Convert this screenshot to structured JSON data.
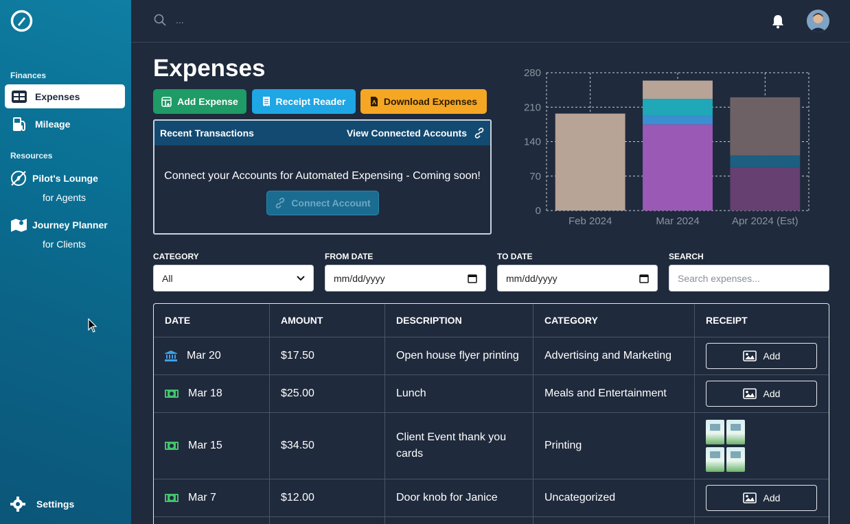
{
  "sidebar": {
    "finances_label": "Finances",
    "items": [
      {
        "label": "Expenses",
        "icon": "table-icon",
        "active": true
      },
      {
        "label": "Mileage",
        "icon": "gas-pump-icon",
        "active": false
      }
    ],
    "resources_label": "Resources",
    "resources": [
      {
        "title": "Pilot's Lounge",
        "subtitle": "for Agents",
        "icon": "compass-icon"
      },
      {
        "title": "Journey Planner",
        "subtitle": "for Clients",
        "icon": "map-icon"
      }
    ],
    "settings_label": "Settings"
  },
  "topbar": {
    "search_placeholder": "..."
  },
  "page": {
    "title": "Expenses",
    "buttons": {
      "add": "Add Expense",
      "receipt": "Receipt Reader",
      "download": "Download Expenses"
    }
  },
  "recent": {
    "title": "Recent Transactions",
    "link": "View Connected Accounts",
    "message": "Connect your Accounts for Automated Expensing - Coming soon!",
    "button": "Connect Account"
  },
  "chart_data": {
    "type": "bar",
    "stacked": true,
    "categories": [
      "Feb 2024",
      "Mar 2024",
      "Apr 2024 (Est)"
    ],
    "ylim": [
      0,
      280
    ],
    "yticks": [
      0,
      70,
      140,
      210,
      280
    ],
    "grid": true,
    "series": [
      {
        "color": "#9b59b6",
        "values": [
          0,
          175,
          0
        ]
      },
      {
        "color": "#3a8fd0",
        "values": [
          0,
          18,
          0
        ]
      },
      {
        "color": "#20a8b8",
        "values": [
          0,
          34,
          0
        ]
      },
      {
        "color": "#b8a397",
        "values": [
          197,
          37,
          0
        ]
      },
      {
        "color": "#654070",
        "values": [
          0,
          0,
          88
        ]
      },
      {
        "color": "#1c5f80",
        "values": [
          0,
          0,
          24
        ]
      },
      {
        "color": "#6e6166",
        "values": [
          0,
          0,
          118
        ]
      }
    ]
  },
  "filters": {
    "category_label": "CATEGORY",
    "category_value": "All",
    "from_label": "FROM DATE",
    "from_placeholder": "mm/dd/yyyy",
    "to_label": "TO DATE",
    "to_placeholder": "mm/dd/yyyy",
    "search_label": "SEARCH",
    "search_placeholder": "Search expenses..."
  },
  "table": {
    "headers": [
      "DATE",
      "AMOUNT",
      "DESCRIPTION",
      "CATEGORY",
      "RECEIPT"
    ],
    "add_label": "Add",
    "rows": [
      {
        "date": "Mar 20",
        "source": "bank-icon",
        "amount": "$17.50",
        "description": "Open house flyer printing",
        "category": "Advertising and Marketing",
        "receipt": "add"
      },
      {
        "date": "Mar 18",
        "source": "cash-icon",
        "amount": "$25.00",
        "description": "Lunch",
        "category": "Meals and Entertainment",
        "receipt": "add"
      },
      {
        "date": "Mar 15",
        "source": "cash-icon",
        "amount": "$34.50",
        "description": "Client Event thank you cards",
        "category": "Printing",
        "receipt": "image"
      },
      {
        "date": "Mar 7",
        "source": "cash-icon",
        "amount": "$12.00",
        "description": "Door knob for Janice",
        "category": "Uncategorized",
        "receipt": "add"
      }
    ]
  }
}
